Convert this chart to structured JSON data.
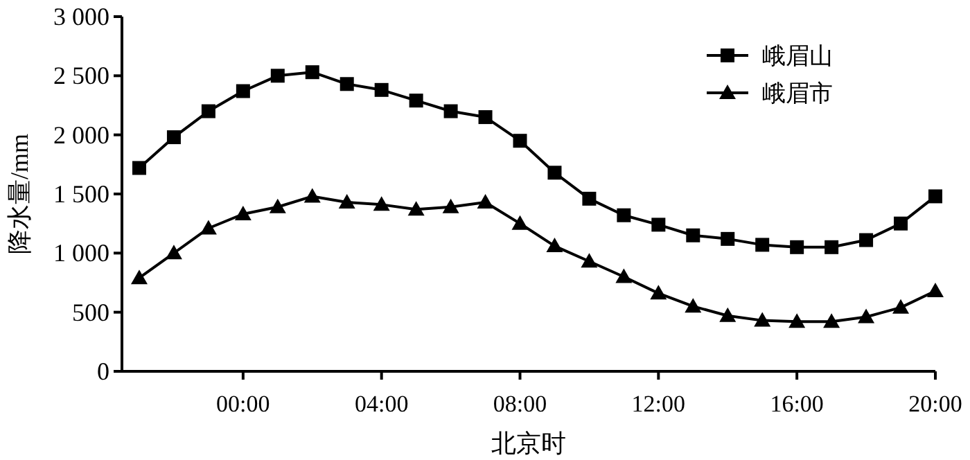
{
  "chart_data": {
    "type": "line",
    "xlabel": "北京时",
    "ylabel": "降水量/mm",
    "xlim": [
      -3.5,
      20
    ],
    "ylim": [
      0,
      3000
    ],
    "xticks": [
      {
        "value": 0,
        "label": "00:00"
      },
      {
        "value": 4,
        "label": "04:00"
      },
      {
        "value": 8,
        "label": "08:00"
      },
      {
        "value": 12,
        "label": "12:00"
      },
      {
        "value": 16,
        "label": "16:00"
      },
      {
        "value": 20,
        "label": "20:00"
      }
    ],
    "yticks": [
      0,
      500,
      {
        "value": 1000,
        "label": "1 000"
      },
      {
        "value": 1500,
        "label": "1 500"
      },
      {
        "value": 2000,
        "label": "2 000"
      },
      {
        "value": 2500,
        "label": "2 500"
      },
      {
        "value": 3000,
        "label": "3 000"
      }
    ],
    "x": [
      -3,
      -2,
      -1,
      0,
      1,
      2,
      3,
      4,
      5,
      6,
      7,
      8,
      9,
      10,
      11,
      12,
      13,
      14,
      15,
      16,
      17,
      18,
      19,
      20
    ],
    "series": [
      {
        "name": "峨眉山",
        "color": "#000000",
        "marker": "square",
        "values": [
          1720,
          1980,
          2200,
          2370,
          2500,
          2530,
          2430,
          2380,
          2290,
          2200,
          2150,
          1950,
          1680,
          1460,
          1320,
          1240,
          1150,
          1120,
          1070,
          1050,
          1050,
          1110,
          1250,
          1480
        ]
      },
      {
        "name": "峨眉市",
        "color": "#000000",
        "marker": "triangle",
        "values": [
          790,
          1000,
          1210,
          1330,
          1390,
          1480,
          1430,
          1410,
          1370,
          1390,
          1430,
          1250,
          1060,
          930,
          800,
          660,
          550,
          470,
          430,
          420,
          420,
          460,
          540,
          680
        ]
      }
    ],
    "legend": "top right",
    "grid": false
  }
}
